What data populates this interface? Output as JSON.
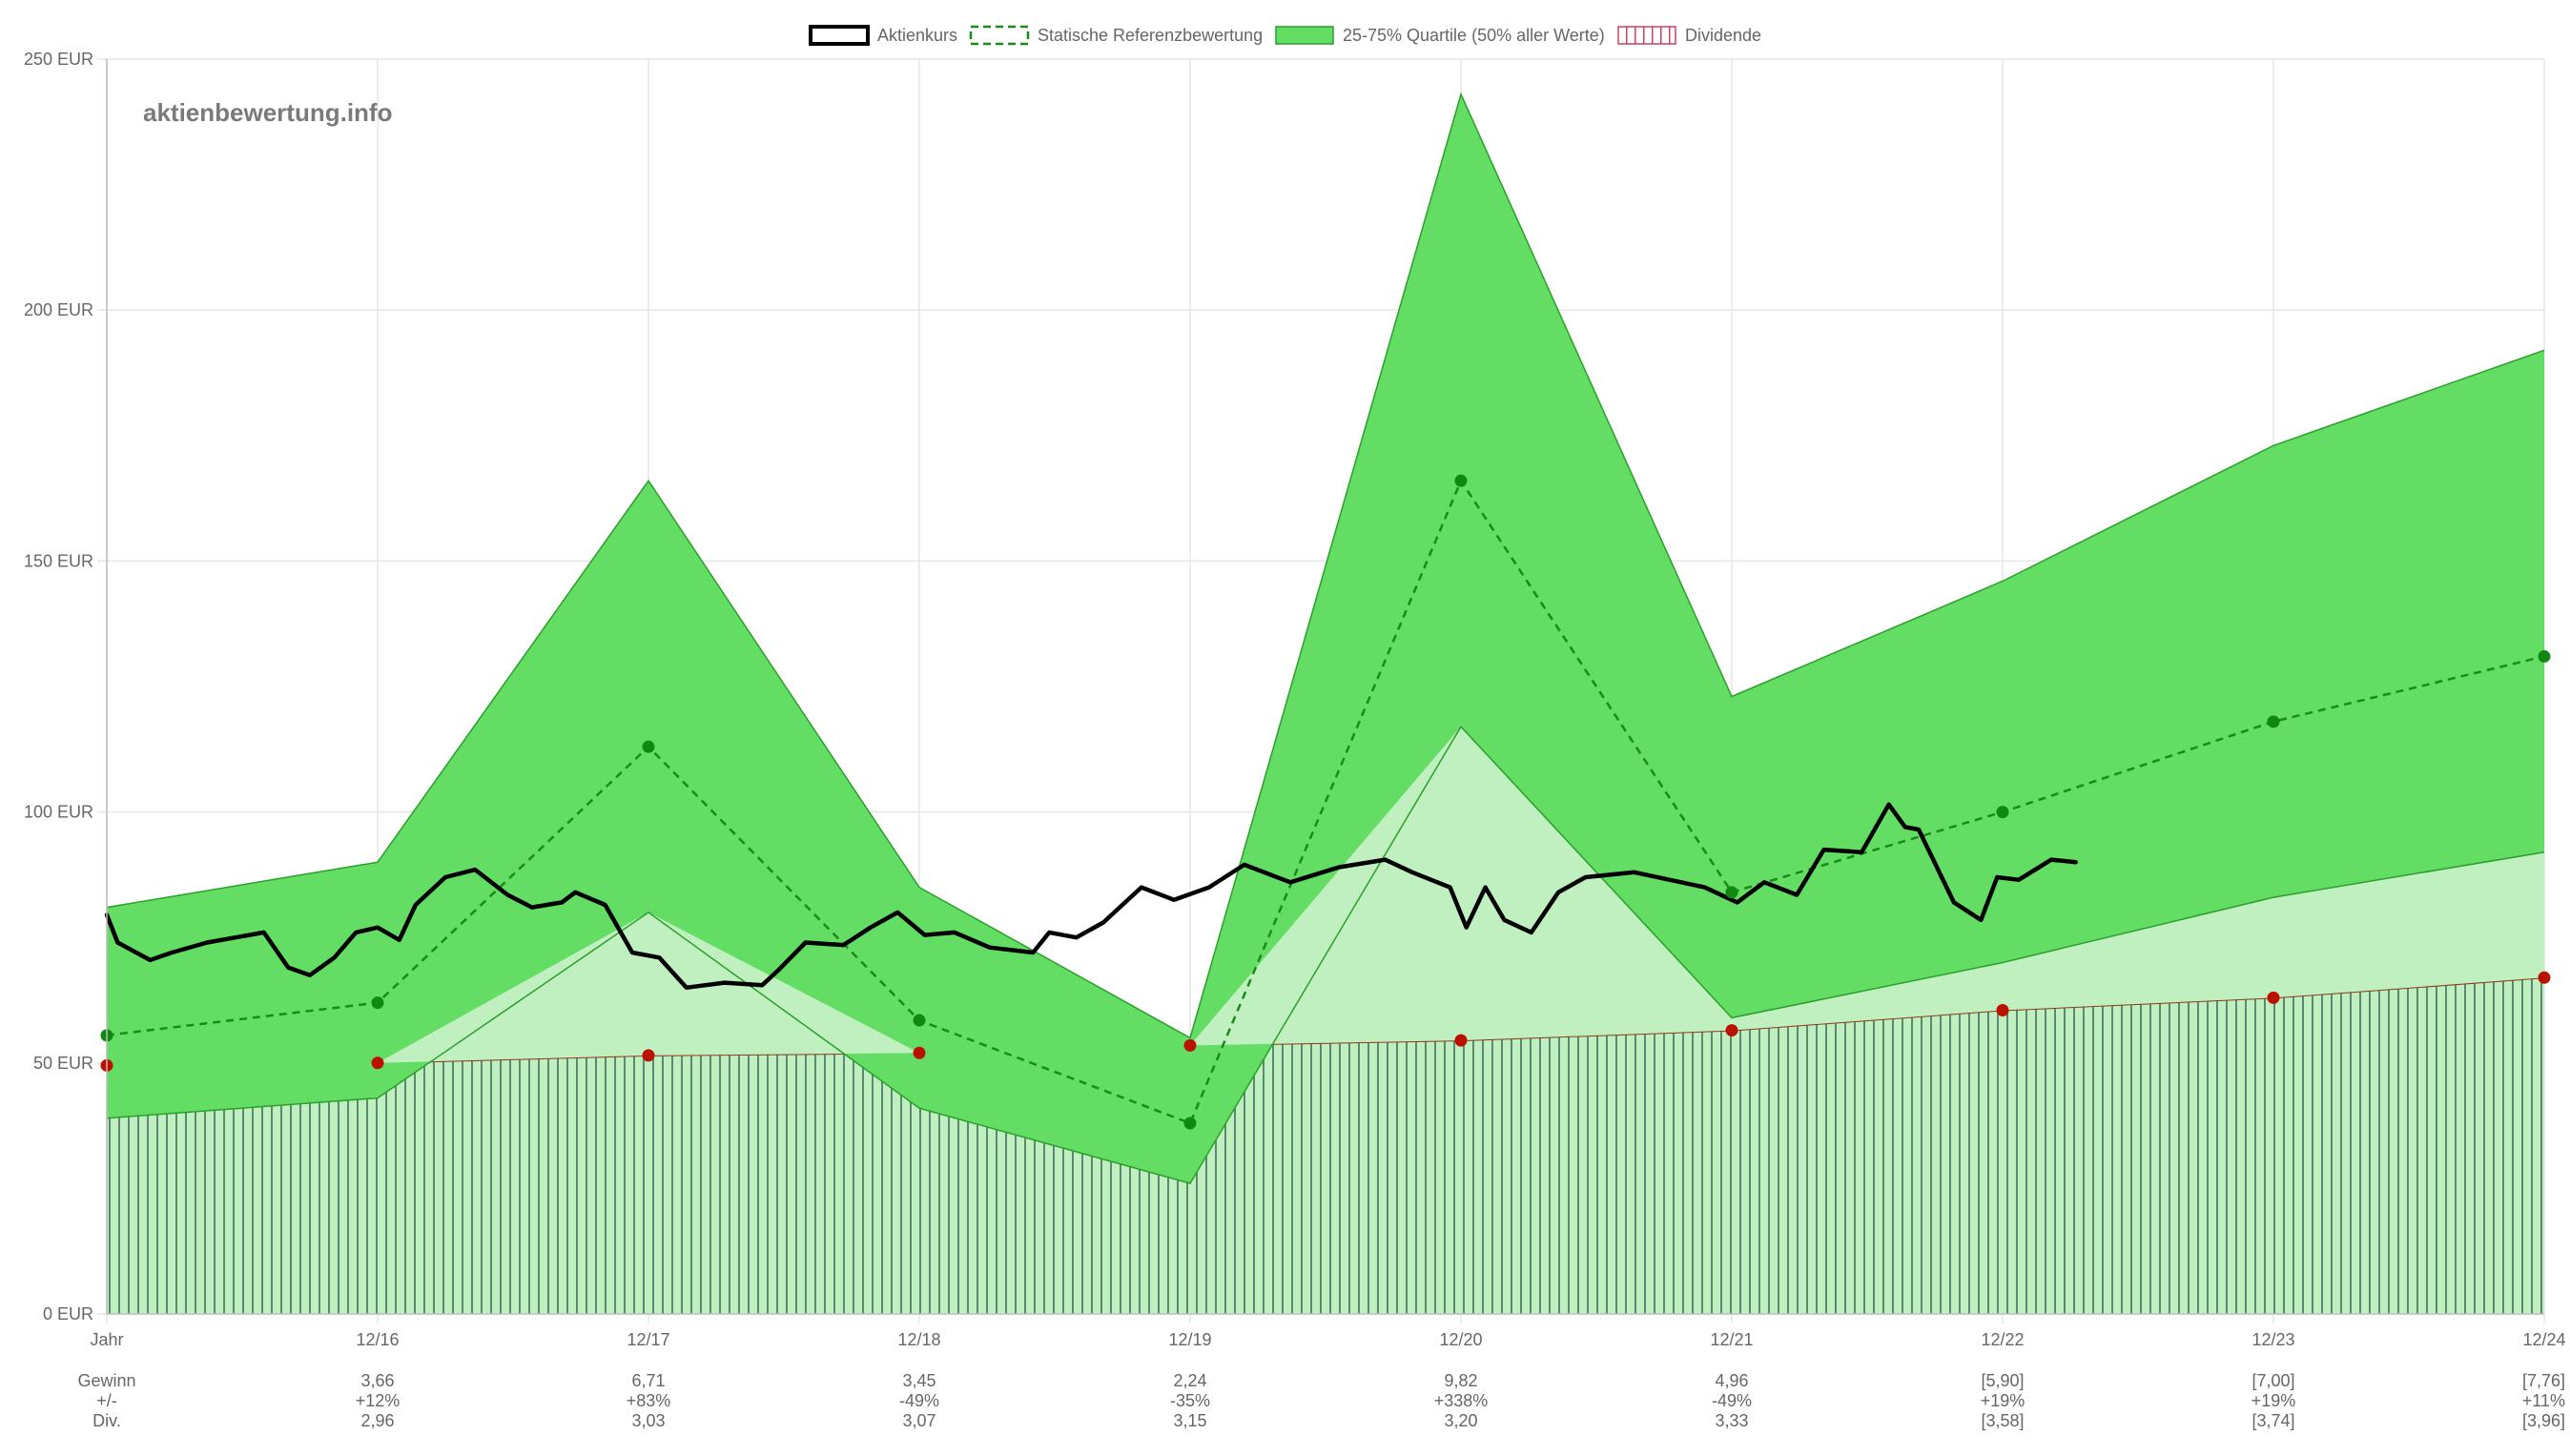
{
  "chart_data": {
    "type": "line",
    "watermark": "aktienbewertung.info",
    "legend": {
      "position": "top",
      "items": [
        {
          "key": "price",
          "label": "Aktienkurs"
        },
        {
          "key": "ref",
          "label": "Statische Referenzbewertung"
        },
        {
          "key": "quartile",
          "label": "25-75% Quartile (50% aller Werte)"
        },
        {
          "key": "dividend",
          "label": "Dividende"
        }
      ]
    },
    "y_axis": {
      "min": 0,
      "max": 250,
      "step": 50,
      "unit": "EUR",
      "tick_labels": [
        "0 EUR",
        "50 EUR",
        "100 EUR",
        "150 EUR",
        "200 EUR",
        "250 EUR"
      ],
      "grid": true
    },
    "x_axis": {
      "min": 0,
      "max": 9,
      "tick_labels": [
        "Jahr",
        "12/16",
        "12/17",
        "12/18",
        "12/19",
        "12/20",
        "12/21",
        "12/22",
        "12/23",
        "12/24"
      ],
      "grid": true
    },
    "colors": {
      "price": "#000000",
      "ref": "#1a8a1a",
      "ref_point": "#118811",
      "quartile_fill": "#63dd63",
      "quartile_line": "#2aa02a",
      "lower_band_fill": "#c0f0c0",
      "dividend_fill": "#c0f0c0",
      "dividend_stripe": "#5a8a72",
      "dividend_line": "#8b3a1a",
      "dividend_point": "#bb1100",
      "legend_dividend": "#d04060",
      "grid": "#e6e6e6",
      "axis": "#bdbdbd"
    },
    "series": [
      {
        "key": "quartile_upper",
        "x": [
          0,
          1,
          2,
          3,
          4,
          5,
          6,
          7,
          8,
          9
        ],
        "values": [
          81,
          90,
          166,
          85,
          55,
          243,
          123,
          146,
          173,
          192
        ]
      },
      {
        "key": "quartile_lower",
        "x": [
          0,
          1,
          2,
          3,
          4,
          5,
          6,
          7,
          8,
          9
        ],
        "values": [
          39,
          43,
          80,
          41,
          26,
          117,
          59,
          70,
          83,
          92
        ]
      },
      {
        "key": "ref",
        "name": "Statische Referenzbewertung",
        "x": [
          0,
          1,
          2,
          3,
          4,
          5,
          6,
          7,
          8,
          9
        ],
        "values": [
          55.5,
          62,
          113,
          58.5,
          38,
          166,
          84,
          100,
          118,
          131
        ]
      },
      {
        "key": "dividend",
        "name": "Dividende",
        "x": [
          0,
          1,
          2,
          3,
          4,
          5,
          6,
          7,
          8,
          9
        ],
        "values": [
          49.5,
          50,
          51.5,
          52,
          53.5,
          54.5,
          56.5,
          60.5,
          63,
          67
        ]
      },
      {
        "key": "price",
        "name": "Aktienkurs",
        "x": [
          0,
          0.04,
          0.16,
          0.24,
          0.37,
          0.58,
          0.67,
          0.75,
          0.84,
          0.92,
          1.0,
          1.08,
          1.14,
          1.25,
          1.36,
          1.48,
          1.57,
          1.68,
          1.73,
          1.84,
          1.94,
          2.04,
          2.14,
          2.28,
          2.42,
          2.48,
          2.58,
          2.72,
          2.82,
          2.92,
          3.02,
          3.13,
          3.26,
          3.42,
          3.48,
          3.58,
          3.68,
          3.82,
          3.94,
          4.07,
          4.2,
          4.37,
          4.55,
          4.72,
          4.82,
          4.96,
          5.02,
          5.09,
          5.16,
          5.26,
          5.36,
          5.46,
          5.64,
          5.77,
          5.9,
          6.02,
          6.12,
          6.24,
          6.34,
          6.48,
          6.58,
          6.64,
          6.69,
          6.82,
          6.92,
          6.98,
          7.06,
          7.18,
          7.27
        ],
        "values": [
          79.5,
          74,
          70.5,
          72,
          74,
          76,
          69,
          67.5,
          71,
          76,
          77,
          74.5,
          81.5,
          87,
          88.5,
          83.5,
          81,
          82,
          84,
          81.5,
          72,
          71,
          65,
          66,
          65.5,
          68.5,
          74,
          73.5,
          77,
          80,
          75.5,
          76,
          73,
          72,
          76,
          75,
          78,
          85,
          82.5,
          85,
          89.5,
          86,
          89,
          90.5,
          88,
          85,
          77,
          85,
          78.5,
          76,
          84,
          87,
          88,
          86.5,
          85,
          82,
          86,
          83.5,
          92.5,
          92,
          101.5,
          97,
          96.5,
          82,
          78.5,
          87,
          86.5,
          90.5,
          90
        ]
      }
    ],
    "table": {
      "row_labels": [
        "Gewinn",
        "+/-",
        "Div."
      ],
      "columns": [
        {
          "gewinn": "3,66",
          "change": "+12%",
          "div": "2,96"
        },
        {
          "gewinn": "6,71",
          "change": "+83%",
          "div": "3,03"
        },
        {
          "gewinn": "3,45",
          "change": "-49%",
          "div": "3,07"
        },
        {
          "gewinn": "2,24",
          "change": "-35%",
          "div": "3,15"
        },
        {
          "gewinn": "9,82",
          "change": "+338%",
          "div": "3,20"
        },
        {
          "gewinn": "4,96",
          "change": "-49%",
          "div": "3,33"
        },
        {
          "gewinn": "[5,90]",
          "change": "+19%",
          "div": "[3,58]"
        },
        {
          "gewinn": "[7,00]",
          "change": "+19%",
          "div": "[3,74]"
        },
        {
          "gewinn": "[7,76]",
          "change": "+11%",
          "div": "[3,96]"
        }
      ]
    }
  }
}
